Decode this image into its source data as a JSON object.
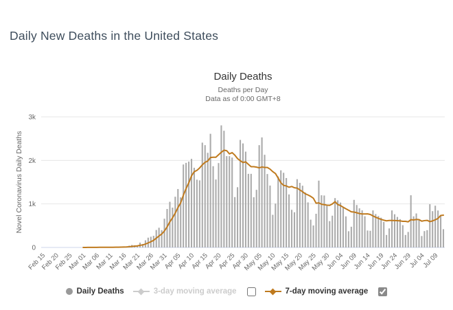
{
  "page": {
    "title": "Daily New Deaths in the United States"
  },
  "chart": {
    "title": "Daily Deaths",
    "subtitle_line1": "Deaths per Day",
    "subtitle_line2": "Data as of 0:00 GMT+8",
    "y_axis_title": "Novel Coronavirus Daily Deaths",
    "colors": {
      "bar": "#ababab",
      "ma7_line": "#bf7a1e",
      "grid": "#e6e6e6",
      "axis_line": "#ccd6eb",
      "muted_text": "#666666",
      "title_text": "#333333",
      "page_title_text": "#3e4d5c",
      "legend_disabled_text": "#cccccc",
      "legend_marker_gray": "#999999"
    }
  },
  "legend": {
    "daily_deaths_label": "Daily Deaths",
    "ma3_label": "3-day moving average",
    "ma7_label": "7-day moving average",
    "ma3_checked": false,
    "ma7_checked": true
  },
  "chart_data": {
    "type": "bar",
    "title": "Daily Deaths",
    "subtitle": [
      "Deaths per Day",
      "Data as of 0:00 GMT+8"
    ],
    "ylabel": "Novel Coronavirus Daily Deaths",
    "ylim": [
      0,
      3000
    ],
    "y_tick_labels": [
      "0",
      "1k",
      "2k",
      "3k"
    ],
    "y_tick_values": [
      0,
      1000,
      2000,
      3000
    ],
    "date_start": "Feb 15",
    "date_end": "Jul 12",
    "n_days": 149,
    "x_tick_interval_days": 5,
    "x_tick_labels": [
      "Feb 15",
      "Feb 20",
      "Feb 25",
      "Mar 01",
      "Mar 06",
      "Mar 11",
      "Mar 16",
      "Mar 21",
      "Mar 26",
      "Mar 31",
      "Apr 05",
      "Apr 10",
      "Apr 15",
      "Apr 20",
      "Apr 25",
      "Apr 30",
      "May 05",
      "May 10",
      "May 15",
      "May 20",
      "May 25",
      "May 30",
      "Jun 04",
      "Jun 09",
      "Jun 14",
      "Jun 19",
      "Jun 24",
      "Jun 29",
      "Jul 04",
      "Jul 09"
    ],
    "legend_position": "bottom",
    "grid": "horizontal",
    "series": [
      {
        "name": "Daily Deaths",
        "type": "bar",
        "values": [
          0,
          0,
          0,
          0,
          0,
          0,
          0,
          0,
          0,
          0,
          0,
          0,
          0,
          0,
          1,
          1,
          5,
          3,
          2,
          3,
          4,
          3,
          4,
          4,
          8,
          8,
          3,
          11,
          10,
          11,
          18,
          23,
          41,
          57,
          49,
          46,
          111,
          80,
          164,
          225,
          247,
          268,
          401,
          453,
          398,
          660,
          884,
          1049,
          915,
          1165,
          1342,
          1150,
          1906,
          1943,
          1973,
          2035,
          1830,
          1557,
          1541,
          2408,
          2350,
          2174,
          2611,
          1867,
          1561,
          1939,
          2804,
          2681,
          2098,
          2097,
          2065,
          1157,
          1384,
          2470,
          2390,
          2201,
          1691,
          1691,
          1154,
          1324,
          2350,
          2528,
          2129,
          1687,
          1422,
          750,
          1008,
          1630,
          1772,
          1715,
          1595,
          1218,
          865,
          808,
          1568,
          1484,
          1418,
          1263,
          1035,
          638,
          505,
          774,
          1535,
          1199,
          1193,
          960,
          605,
          730,
          1134,
          1083,
          1031,
          921,
          714,
          373,
          476,
          1093,
          975,
          899,
          853,
          716,
          389,
          383,
          851,
          767,
          722,
          684,
          586,
          287,
          437,
          851,
          763,
          701,
          650,
          512,
          287,
          356,
          1199,
          714,
          781,
          628,
          263,
          376,
          397,
          993,
          834,
          959,
          849,
          737,
          420
        ]
      },
      {
        "name": "7-day moving average",
        "type": "line",
        "derived": "trailing 7-day mean of Daily Deaths",
        "start_index": 15
      },
      {
        "name": "3-day moving average",
        "type": "line",
        "visible": false
      }
    ]
  }
}
